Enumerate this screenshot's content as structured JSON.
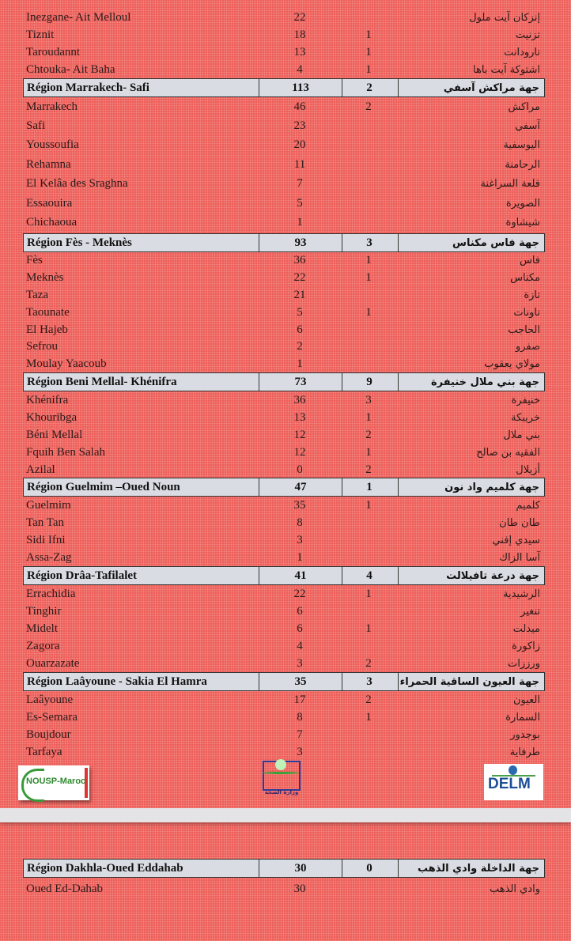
{
  "blocks": [
    {
      "rows": [
        {
          "fr": "Inezgane- Ait Melloul",
          "total": "22",
          "count": "",
          "ar": "إنزكان آيت ملول"
        },
        {
          "fr": "Tiznit",
          "total": "18",
          "count": "1",
          "ar": "تزنيت"
        },
        {
          "fr": "Taroudannt",
          "total": "13",
          "count": "1",
          "ar": "تارودانت"
        },
        {
          "fr": "Chtouka- Ait Baha",
          "total": "4",
          "count": "1",
          "ar": "اشتوكة آيت باها"
        }
      ]
    },
    {
      "header": {
        "fr": "Région Marrakech- Safi",
        "total": "113",
        "count": "2",
        "ar": "جهة مراكش آسفي"
      },
      "rows": [
        {
          "fr": "Marrakech",
          "total": "46",
          "count": "2",
          "ar": "مراكش"
        },
        {
          "fr": "Safi",
          "total": "23",
          "count": "",
          "ar": "آسفي"
        },
        {
          "fr": "Youssoufia",
          "total": "20",
          "count": "",
          "ar": "اليوسفية"
        },
        {
          "fr": "Rehamna",
          "total": "11",
          "count": "",
          "ar": "الرحامنة"
        },
        {
          "fr": "El Kelâa des  Sraghna",
          "total": "7",
          "count": "",
          "ar": "قلعة السراغنة"
        },
        {
          "fr": "Essaouira",
          "total": "5",
          "count": "",
          "ar": "الصويرة"
        },
        {
          "fr": "Chichaoua",
          "total": "1",
          "count": "",
          "ar": "شيشاوة"
        }
      ]
    },
    {
      "header": {
        "fr": "Région Fès - Meknès",
        "total": "93",
        "count": "3",
        "ar": "جهة فاس مكناس"
      },
      "rows": [
        {
          "fr": "Fès",
          "total": "36",
          "count": "1",
          "ar": "فاس"
        },
        {
          "fr": "Meknès",
          "total": "22",
          "count": "1",
          "ar": "مكناس"
        },
        {
          "fr": "Taza",
          "total": "21",
          "count": "",
          "ar": "تازة"
        },
        {
          "fr": "Taounate",
          "total": "5",
          "count": "1",
          "ar": "تاونات"
        },
        {
          "fr": "El  Hajeb",
          "total": "6",
          "count": "",
          "ar": "الحاجب"
        },
        {
          "fr": "Sefrou",
          "total": "2",
          "count": "",
          "ar": "صفرو"
        },
        {
          "fr": "Moulay Yaacoub",
          "total": "1",
          "count": "",
          "ar": "مولاي يعقوب"
        }
      ]
    },
    {
      "header": {
        "fr": "Région Beni Mellal- Khénifra",
        "total": "73",
        "count": "9",
        "ar": "جهة بني ملال خنيفرة"
      },
      "rows": [
        {
          "fr": "Khénifra",
          "total": "36",
          "count": "3",
          "ar": "خنيفرة"
        },
        {
          "fr": "Khouribga",
          "total": "13",
          "count": "1",
          "ar": "خريبكة"
        },
        {
          "fr": "Béni Mellal",
          "total": "12",
          "count": "2",
          "ar": "بني ملال"
        },
        {
          "fr": "Fquih Ben Salah",
          "total": "12",
          "count": "1",
          "ar": "الفقيه بن صالح"
        },
        {
          "fr": "Azilal",
          "total": "0",
          "count": "2",
          "ar": "أزيلال"
        }
      ]
    },
    {
      "header": {
        "fr": "Région Guelmim –Oued Noun",
        "total": "47",
        "count": "1",
        "ar": "جهة كلميم واد نون"
      },
      "rows": [
        {
          "fr": "Guelmim",
          "total": "35",
          "count": "1",
          "ar": "كلميم"
        },
        {
          "fr": "Tan Tan",
          "total": "8",
          "count": "",
          "ar": "طان طان"
        },
        {
          "fr": "Sidi Ifni",
          "total": "3",
          "count": "",
          "ar": "سيدي إفني"
        },
        {
          "fr": "Assa-Zag",
          "total": "1",
          "count": "",
          "ar": "آسا الزاك"
        }
      ]
    },
    {
      "header": {
        "fr": "Région Drâa-Tafilalet",
        "total": "41",
        "count": "4",
        "ar": "جهة درعة تافيلالت"
      },
      "rows": [
        {
          "fr": "Errachidia",
          "total": "22",
          "count": "1",
          "ar": "الرشيدية"
        },
        {
          "fr": "Tinghir",
          "total": "6",
          "count": "",
          "ar": "تنغير"
        },
        {
          "fr": "Midelt",
          "total": "6",
          "count": "1",
          "ar": "ميدلت"
        },
        {
          "fr": "Zagora",
          "total": "4",
          "count": "",
          "ar": "زاكورة"
        },
        {
          "fr": "Ouarzazate",
          "total": "3",
          "count": "2",
          "ar": "ورززات"
        }
      ]
    },
    {
      "header": {
        "fr": "Région Laâyoune - Sakia El Hamra",
        "total": "35",
        "count": "3",
        "ar": "جهة العيون الساقية الحمراء"
      },
      "rows": [
        {
          "fr": "Laâyoune",
          "total": "17",
          "count": "2",
          "ar": "العيون"
        },
        {
          "fr": "Es-Semara",
          "total": "8",
          "count": "1",
          "ar": "السمارة"
        },
        {
          "fr": "Boujdour",
          "total": "7",
          "count": "",
          "ar": "بوجدور"
        },
        {
          "fr": "Tarfaya",
          "total": "3",
          "count": "",
          "ar": "طرفاية"
        }
      ]
    },
    {
      "header": {
        "fr": "Région Dakhla-Oued Eddahab",
        "total": "30",
        "count": "0",
        "ar": "جهة الداخلة وادي الذهب"
      },
      "rows": [
        {
          "fr": "Oued Ed-Dahab",
          "total": "30",
          "count": "",
          "ar": "وادي الذهب"
        }
      ]
    }
  ],
  "logos": {
    "left": "NOUSP-Maroc",
    "center": "وزارة الصحة",
    "right": "DELM"
  },
  "colors": {
    "background": "#ec5b56",
    "header_fill": "#d9dde3"
  }
}
